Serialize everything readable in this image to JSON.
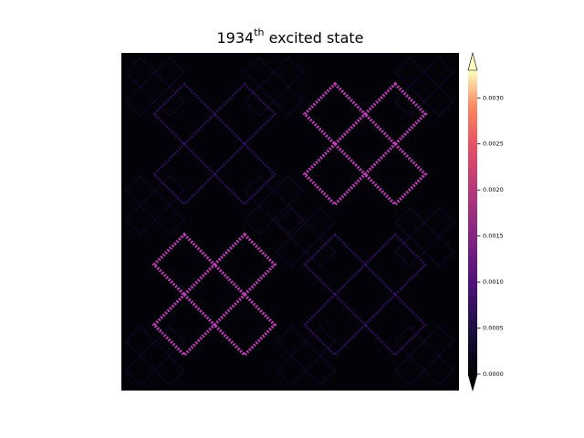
{
  "chart_data": {
    "type": "heatmap",
    "title_number": "1934",
    "title_suffix": "th",
    "title_text": "excited state",
    "colormap": "magma",
    "colorbar_extend": "both",
    "clim": [
      0,
      0.0033
    ],
    "cticks": [
      {
        "value": 0,
        "label": "0.0000"
      },
      {
        "value": 0.0005,
        "label": "0.0005"
      },
      {
        "value": 0.001,
        "label": "0.0010"
      },
      {
        "value": 0.0015,
        "label": "0.0015"
      },
      {
        "value": 0.002,
        "label": "0.0020"
      },
      {
        "value": 0.0025,
        "label": "0.0025"
      },
      {
        "value": 0.003,
        "label": "0.0030"
      }
    ]
  }
}
